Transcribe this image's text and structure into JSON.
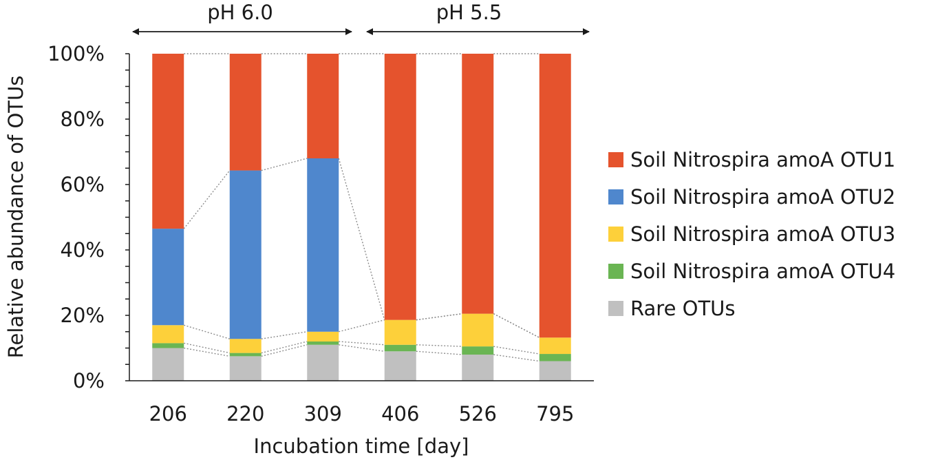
{
  "chart_data": {
    "type": "bar",
    "stacked": true,
    "normalized_percent": true,
    "title": "",
    "xlabel": "Incubation time [day]",
    "ylabel": "Relative abundance of OTUs",
    "ylim": [
      0,
      100
    ],
    "y_ticks": [
      "0%",
      "20%",
      "40%",
      "60%",
      "80%",
      "100%"
    ],
    "categories": [
      "206",
      "220",
      "309",
      "406",
      "526",
      "795"
    ],
    "series": [
      {
        "name": "Rare OTUs",
        "color": "#c0c0c0",
        "values": [
          10,
          7.5,
          11,
          9,
          8,
          6
        ]
      },
      {
        "name": "Soil Nitrospira amoA OTU4",
        "color": "#6ab553",
        "values": [
          1.5,
          1,
          1,
          2,
          2.5,
          2.2
        ]
      },
      {
        "name": "Soil Nitrospira amoA OTU3",
        "color": "#fdd03a",
        "values": [
          5.5,
          4.3,
          3,
          7.6,
          10,
          5
        ]
      },
      {
        "name": "Soil Nitrospira amoA OTU2",
        "color": "#4f87cd",
        "values": [
          29.5,
          51.5,
          53,
          0,
          0,
          0
        ]
      },
      {
        "name": "Soil Nitrospira amoA OTU1",
        "color": "#e5532d",
        "values": [
          53.5,
          35.7,
          32,
          81.4,
          79.5,
          86.8
        ]
      }
    ],
    "legend": {
      "placement": "right",
      "entries": [
        {
          "label": "Soil Nitrospira amoA OTU1",
          "color": "#e5532d"
        },
        {
          "label": "Soil Nitrospira amoA OTU2",
          "color": "#4f87cd"
        },
        {
          "label": "Soil Nitrospira amoA OTU3",
          "color": "#fdd03a"
        },
        {
          "label": "Soil Nitrospira amoA OTU4",
          "color": "#6ab553"
        },
        {
          "label": "Rare OTUs",
          "color": "#c0c0c0"
        }
      ]
    },
    "annotations": [
      {
        "text": "pH 6.0",
        "from_category": "206",
        "to_category": "309"
      },
      {
        "text": "pH 5.5",
        "from_category": "406",
        "to_category": "795"
      }
    ]
  }
}
